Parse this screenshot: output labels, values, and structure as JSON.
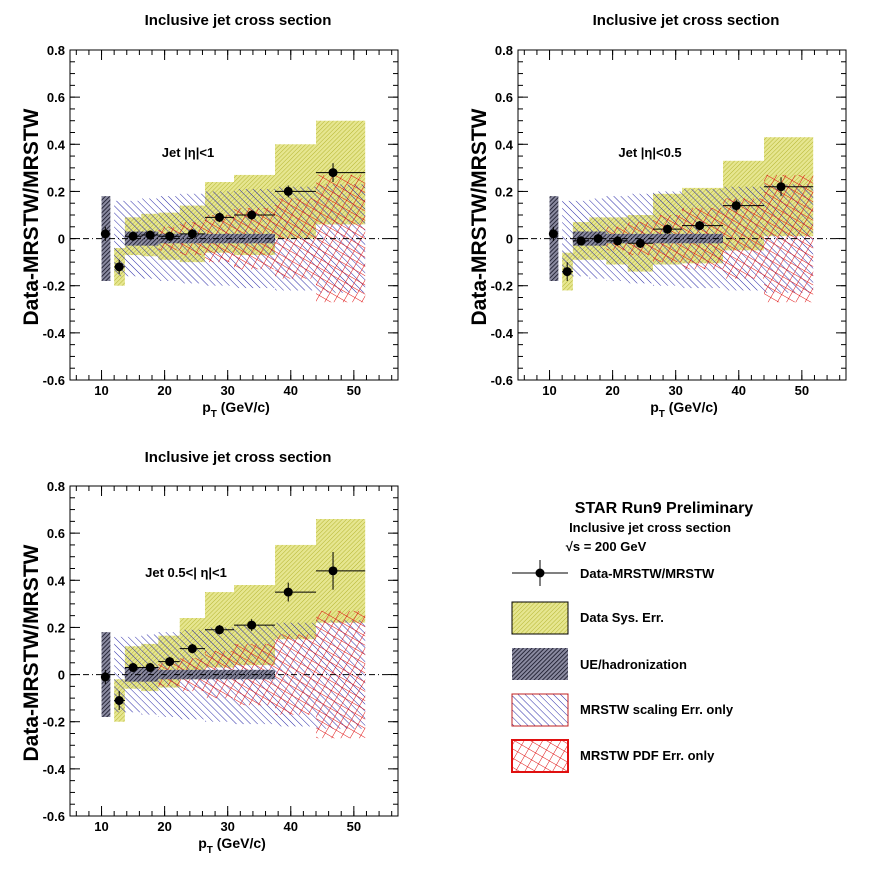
{
  "colors": {
    "data_sys": "#d4d46a",
    "ue": "#1a1a4a",
    "scaling": "#2a2aa8",
    "pdf": "#e01010",
    "marker": "#000000"
  },
  "legend": {
    "header": "STAR Run9 Preliminary",
    "subtitle": "Inclusive jet cross section",
    "energy": "√s = 200 GeV",
    "entries": [
      {
        "key": "data",
        "label": "Data-MRSTW/MRSTW"
      },
      {
        "key": "sys",
        "label": "Data Sys. Err."
      },
      {
        "key": "ue",
        "label": "UE/hadronization"
      },
      {
        "key": "scaling",
        "label": "MRSTW scaling Err. only"
      },
      {
        "key": "pdf",
        "label": "MRSTW PDF Err. only"
      }
    ]
  },
  "chart_data": [
    {
      "type": "scatter",
      "title": "Inclusive jet cross section",
      "annotation": "Jet |η|<1",
      "xlabel_main": "p",
      "xlabel_sub": "T",
      "xlabel_rest": " (GeV/c)",
      "ylabel": "Data-MRSTW/MRSTW",
      "xlim": [
        5,
        57
      ],
      "ylim": [
        -0.6,
        0.8
      ],
      "xticks": [
        10,
        20,
        30,
        40,
        50
      ],
      "yticks": [
        "-0.6",
        "-0.4",
        "-0.2",
        "0",
        "0.2",
        "0.4",
        "0.6",
        "0.8"
      ],
      "points": [
        {
          "x": 10.6,
          "xlo": 10.0,
          "xhi": 11.4,
          "y": 0.02,
          "ey": 0.03,
          "sys": 0.0,
          "ue": 0.18,
          "scaling": 0.17,
          "pdf": 0.0
        },
        {
          "x": 12.8,
          "xlo": 12.0,
          "xhi": 13.7,
          "y": -0.12,
          "ey": 0.03,
          "sys": 0.08,
          "ue": 0.0,
          "scaling": 0.16,
          "pdf": 0.0
        },
        {
          "x": 15.0,
          "xlo": 13.7,
          "xhi": 16.3,
          "y": 0.01,
          "ey": 0.02,
          "sys": 0.08,
          "ue": 0.03,
          "scaling": 0.16,
          "pdf": 0.02
        },
        {
          "x": 17.7,
          "xlo": 16.3,
          "xhi": 19.0,
          "y": 0.015,
          "ey": 0.02,
          "sys": 0.09,
          "ue": 0.03,
          "scaling": 0.17,
          "pdf": 0.03
        },
        {
          "x": 20.8,
          "xlo": 19.0,
          "xhi": 22.4,
          "y": 0.01,
          "ey": 0.02,
          "sys": 0.1,
          "ue": 0.02,
          "scaling": 0.18,
          "pdf": 0.05
        },
        {
          "x": 24.4,
          "xlo": 22.4,
          "xhi": 26.4,
          "y": 0.02,
          "ey": 0.02,
          "sys": 0.12,
          "ue": 0.02,
          "scaling": 0.19,
          "pdf": 0.07
        },
        {
          "x": 28.7,
          "xlo": 26.4,
          "xhi": 31.0,
          "y": 0.09,
          "ey": 0.02,
          "sys": 0.15,
          "ue": 0.02,
          "scaling": 0.2,
          "pdf": 0.1
        },
        {
          "x": 33.8,
          "xlo": 31.0,
          "xhi": 37.5,
          "y": 0.1,
          "ey": 0.02,
          "sys": 0.17,
          "ue": 0.02,
          "scaling": 0.21,
          "pdf": 0.13
        },
        {
          "x": 39.6,
          "xlo": 37.5,
          "xhi": 44.0,
          "y": 0.2,
          "ey": 0.025,
          "sys": 0.2,
          "ue": 0.0,
          "scaling": 0.22,
          "pdf": 0.17
        },
        {
          "x": 46.7,
          "xlo": 44.0,
          "xhi": 51.8,
          "y": 0.28,
          "ey": 0.04,
          "sys": 0.22,
          "ue": 0.0,
          "scaling": 0.23,
          "pdf": 0.27
        }
      ]
    },
    {
      "type": "scatter",
      "title": "Inclusive jet cross section",
      "annotation": "Jet |η|<0.5",
      "xlabel_main": "p",
      "xlabel_sub": "T",
      "xlabel_rest": " (GeV/c)",
      "ylabel": "Data-MRSTW/MRSTW",
      "xlim": [
        5,
        57
      ],
      "ylim": [
        -0.6,
        0.8
      ],
      "xticks": [
        10,
        20,
        30,
        40,
        50
      ],
      "yticks": [
        "-0.6",
        "-0.4",
        "-0.2",
        "0",
        "0.2",
        "0.4",
        "0.6",
        "0.8"
      ],
      "points": [
        {
          "x": 10.6,
          "xlo": 10.0,
          "xhi": 11.4,
          "y": 0.02,
          "ey": 0.03,
          "sys": 0.0,
          "ue": 0.18,
          "scaling": 0.17,
          "pdf": 0.0
        },
        {
          "x": 12.8,
          "xlo": 12.0,
          "xhi": 13.7,
          "y": -0.14,
          "ey": 0.04,
          "sys": 0.08,
          "ue": 0.0,
          "scaling": 0.16,
          "pdf": 0.0
        },
        {
          "x": 15.0,
          "xlo": 13.7,
          "xhi": 16.3,
          "y": -0.01,
          "ey": 0.02,
          "sys": 0.08,
          "ue": 0.03,
          "scaling": 0.16,
          "pdf": 0.02
        },
        {
          "x": 17.7,
          "xlo": 16.3,
          "xhi": 19.0,
          "y": 0.0,
          "ey": 0.02,
          "sys": 0.09,
          "ue": 0.03,
          "scaling": 0.17,
          "pdf": 0.03
        },
        {
          "x": 20.8,
          "xlo": 19.0,
          "xhi": 22.4,
          "y": -0.01,
          "ey": 0.02,
          "sys": 0.1,
          "ue": 0.02,
          "scaling": 0.18,
          "pdf": 0.05
        },
        {
          "x": 24.4,
          "xlo": 22.4,
          "xhi": 26.4,
          "y": -0.02,
          "ey": 0.02,
          "sys": 0.12,
          "ue": 0.02,
          "scaling": 0.19,
          "pdf": 0.07
        },
        {
          "x": 28.7,
          "xlo": 26.4,
          "xhi": 31.0,
          "y": 0.04,
          "ey": 0.02,
          "sys": 0.15,
          "ue": 0.02,
          "scaling": 0.2,
          "pdf": 0.1
        },
        {
          "x": 33.8,
          "xlo": 31.0,
          "xhi": 37.5,
          "y": 0.055,
          "ey": 0.02,
          "sys": 0.16,
          "ue": 0.02,
          "scaling": 0.21,
          "pdf": 0.13
        },
        {
          "x": 39.6,
          "xlo": 37.5,
          "xhi": 44.0,
          "y": 0.14,
          "ey": 0.025,
          "sys": 0.19,
          "ue": 0.0,
          "scaling": 0.22,
          "pdf": 0.17
        },
        {
          "x": 46.7,
          "xlo": 44.0,
          "xhi": 51.8,
          "y": 0.22,
          "ey": 0.04,
          "sys": 0.21,
          "ue": 0.0,
          "scaling": 0.23,
          "pdf": 0.27
        }
      ]
    },
    {
      "type": "scatter",
      "title": "Inclusive jet cross section",
      "annotation": "Jet 0.5<| η|<1",
      "xlabel_main": "p",
      "xlabel_sub": "T",
      "xlabel_rest": " (GeV/c)",
      "ylabel": "Data-MRSTW/MRSTW",
      "xlim": [
        5,
        57
      ],
      "ylim": [
        -0.6,
        0.8
      ],
      "xticks": [
        10,
        20,
        30,
        40,
        50
      ],
      "yticks": [
        "-0.6",
        "-0.4",
        "-0.2",
        "0",
        "0.2",
        "0.4",
        "0.6",
        "0.8"
      ],
      "points": [
        {
          "x": 10.6,
          "xlo": 10.0,
          "xhi": 11.4,
          "y": -0.01,
          "ey": 0.03,
          "sys": 0.0,
          "ue": 0.18,
          "scaling": 0.17,
          "pdf": 0.0
        },
        {
          "x": 12.8,
          "xlo": 12.0,
          "xhi": 13.7,
          "y": -0.11,
          "ey": 0.04,
          "sys": 0.09,
          "ue": 0.0,
          "scaling": 0.16,
          "pdf": 0.0
        },
        {
          "x": 15.0,
          "xlo": 13.7,
          "xhi": 16.3,
          "y": 0.03,
          "ey": 0.02,
          "sys": 0.09,
          "ue": 0.03,
          "scaling": 0.16,
          "pdf": 0.02
        },
        {
          "x": 17.7,
          "xlo": 16.3,
          "xhi": 19.0,
          "y": 0.03,
          "ey": 0.02,
          "sys": 0.1,
          "ue": 0.03,
          "scaling": 0.17,
          "pdf": 0.03
        },
        {
          "x": 20.8,
          "xlo": 19.0,
          "xhi": 22.4,
          "y": 0.055,
          "ey": 0.02,
          "sys": 0.11,
          "ue": 0.02,
          "scaling": 0.18,
          "pdf": 0.05
        },
        {
          "x": 24.4,
          "xlo": 22.4,
          "xhi": 26.4,
          "y": 0.11,
          "ey": 0.02,
          "sys": 0.13,
          "ue": 0.02,
          "scaling": 0.19,
          "pdf": 0.07
        },
        {
          "x": 28.7,
          "xlo": 26.4,
          "xhi": 31.0,
          "y": 0.19,
          "ey": 0.02,
          "sys": 0.16,
          "ue": 0.02,
          "scaling": 0.2,
          "pdf": 0.1
        },
        {
          "x": 33.8,
          "xlo": 31.0,
          "xhi": 37.5,
          "y": 0.21,
          "ey": 0.025,
          "sys": 0.17,
          "ue": 0.02,
          "scaling": 0.21,
          "pdf": 0.13
        },
        {
          "x": 39.6,
          "xlo": 37.5,
          "xhi": 44.0,
          "y": 0.35,
          "ey": 0.04,
          "sys": 0.2,
          "ue": 0.0,
          "scaling": 0.22,
          "pdf": 0.17
        },
        {
          "x": 46.7,
          "xlo": 44.0,
          "xhi": 51.8,
          "y": 0.44,
          "ey": 0.08,
          "sys": 0.22,
          "ue": 0.0,
          "scaling": 0.23,
          "pdf": 0.27
        }
      ]
    }
  ]
}
